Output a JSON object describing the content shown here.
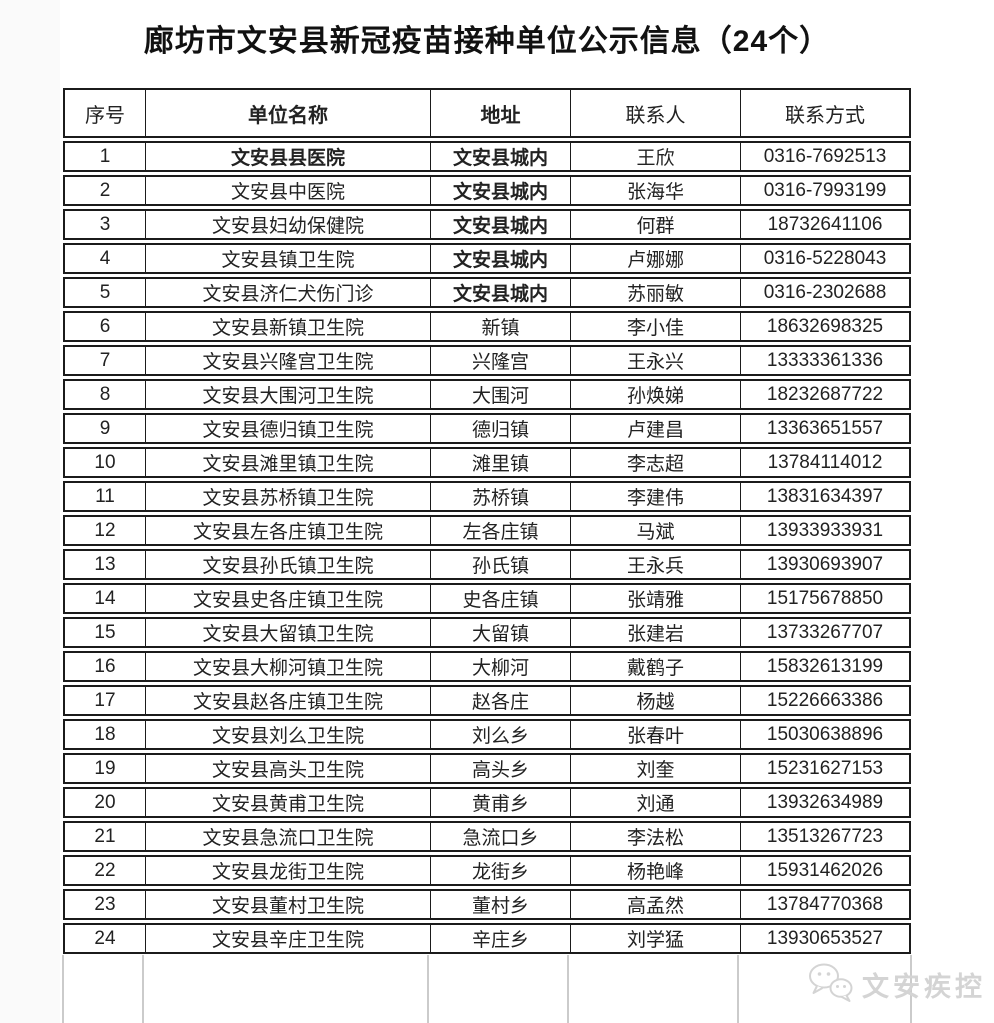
{
  "page": {
    "title": "廊坊市文安县新冠疫苗接种单位公示信息（24个）",
    "watermark": {
      "icon": "wechat-icon",
      "text": "文安疾控"
    }
  },
  "colors": {
    "table_border": "#1b1b1b",
    "grid_extension_lines": "#cbcbcb",
    "watermark": "#d4d4d4",
    "text": "#222222"
  },
  "table": {
    "columns": [
      {
        "key": "index",
        "label": "序号",
        "bold": false
      },
      {
        "key": "name",
        "label": "单位名称",
        "bold": true
      },
      {
        "key": "address",
        "label": "地址",
        "bold": true
      },
      {
        "key": "contact",
        "label": "联系人",
        "bold": false
      },
      {
        "key": "phone",
        "label": "联系方式",
        "bold": false
      }
    ],
    "rows": [
      {
        "index": "1",
        "name": "文安县县医院",
        "name_bold": true,
        "address": "文安县城内",
        "address_bold": true,
        "contact": "王欣",
        "phone": "0316-7692513"
      },
      {
        "index": "2",
        "name": "文安县中医院",
        "name_bold": false,
        "address": "文安县城内",
        "address_bold": true,
        "contact": "张海华",
        "phone": "0316-7993199"
      },
      {
        "index": "3",
        "name": "文安县妇幼保健院",
        "name_bold": false,
        "address": "文安县城内",
        "address_bold": true,
        "contact": "何群",
        "phone": "18732641106"
      },
      {
        "index": "4",
        "name": "文安县镇卫生院",
        "name_bold": false,
        "address": "文安县城内",
        "address_bold": true,
        "contact": "卢娜娜",
        "phone": "0316-5228043"
      },
      {
        "index": "5",
        "name": "文安县济仁犬伤门诊",
        "name_bold": false,
        "address": "文安县城内",
        "address_bold": true,
        "contact": "苏丽敏",
        "phone": "0316-2302688"
      },
      {
        "index": "6",
        "name": "文安县新镇卫生院",
        "name_bold": false,
        "address": "新镇",
        "address_bold": false,
        "contact": "李小佳",
        "phone": "18632698325"
      },
      {
        "index": "7",
        "name": "文安县兴隆宫卫生院",
        "name_bold": false,
        "address": "兴隆宫",
        "address_bold": false,
        "contact": "王永兴",
        "phone": "13333361336"
      },
      {
        "index": "8",
        "name": "文安县大围河卫生院",
        "name_bold": false,
        "address": "大围河",
        "address_bold": false,
        "contact": "孙焕娣",
        "phone": "18232687722"
      },
      {
        "index": "9",
        "name": "文安县德归镇卫生院",
        "name_bold": false,
        "address": "德归镇",
        "address_bold": false,
        "contact": "卢建昌",
        "phone": "13363651557"
      },
      {
        "index": "10",
        "name": "文安县滩里镇卫生院",
        "name_bold": false,
        "address": "滩里镇",
        "address_bold": false,
        "contact": "李志超",
        "phone": "13784114012"
      },
      {
        "index": "11",
        "name": "文安县苏桥镇卫生院",
        "name_bold": false,
        "address": "苏桥镇",
        "address_bold": false,
        "contact": "李建伟",
        "phone": "13831634397"
      },
      {
        "index": "12",
        "name": "文安县左各庄镇卫生院",
        "name_bold": false,
        "address": "左各庄镇",
        "address_bold": false,
        "contact": "马斌",
        "phone": "13933933931"
      },
      {
        "index": "13",
        "name": "文安县孙氏镇卫生院",
        "name_bold": false,
        "address": "孙氏镇",
        "address_bold": false,
        "contact": "王永兵",
        "phone": "13930693907"
      },
      {
        "index": "14",
        "name": "文安县史各庄镇卫生院",
        "name_bold": false,
        "address": "史各庄镇",
        "address_bold": false,
        "contact": "张靖雅",
        "phone": "15175678850"
      },
      {
        "index": "15",
        "name": "文安县大留镇卫生院",
        "name_bold": false,
        "address": "大留镇",
        "address_bold": false,
        "contact": "张建岩",
        "phone": "13733267707"
      },
      {
        "index": "16",
        "name": "文安县大柳河镇卫生院",
        "name_bold": false,
        "address": "大柳河",
        "address_bold": false,
        "contact": "戴鹤子",
        "phone": "15832613199"
      },
      {
        "index": "17",
        "name": "文安县赵各庄镇卫生院",
        "name_bold": false,
        "address": "赵各庄",
        "address_bold": false,
        "contact": "杨越",
        "phone": "15226663386"
      },
      {
        "index": "18",
        "name": "文安县刘么卫生院",
        "name_bold": false,
        "address": "刘么乡",
        "address_bold": false,
        "contact": "张春叶",
        "phone": "15030638896"
      },
      {
        "index": "19",
        "name": "文安县高头卫生院",
        "name_bold": false,
        "address": "高头乡",
        "address_bold": false,
        "contact": "刘奎",
        "phone": "15231627153"
      },
      {
        "index": "20",
        "name": "文安县黄甫卫生院",
        "name_bold": false,
        "address": "黄甫乡",
        "address_bold": false,
        "contact": "刘通",
        "phone": "13932634989"
      },
      {
        "index": "21",
        "name": "文安县急流口卫生院",
        "name_bold": false,
        "address": "急流口乡",
        "address_bold": false,
        "contact": "李法松",
        "phone": "13513267723"
      },
      {
        "index": "22",
        "name": "文安县龙街卫生院",
        "name_bold": false,
        "address": "龙街乡",
        "address_bold": false,
        "contact": "杨艳峰",
        "phone": "15931462026"
      },
      {
        "index": "23",
        "name": "文安县董村卫生院",
        "name_bold": false,
        "address": "董村乡",
        "address_bold": false,
        "contact": "高孟然",
        "phone": "13784770368"
      },
      {
        "index": "24",
        "name": "文安县辛庄卫生院",
        "name_bold": false,
        "address": "辛庄乡",
        "address_bold": false,
        "contact": "刘学猛",
        "phone": "13930653527"
      }
    ]
  }
}
